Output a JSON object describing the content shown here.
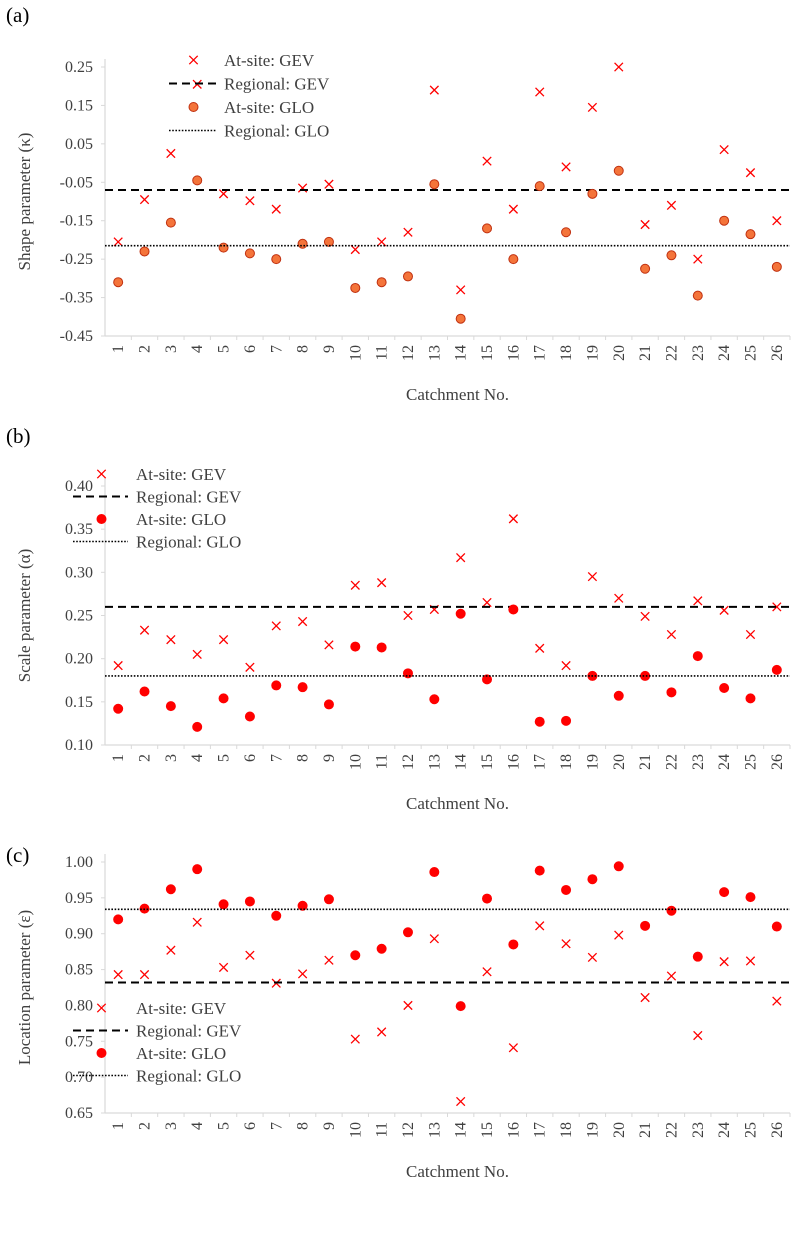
{
  "colors": {
    "marker": "#ff0000",
    "marker_fill_a": "#f4743a",
    "axis": "#d9d9d9",
    "text": "#404040",
    "ref_line": "#000000"
  },
  "chart_data": [
    {
      "type": "scatter",
      "panel_label": "(a)",
      "xlabel": "Catchment No.",
      "ylabel": "Shape parameter (κ)",
      "categories": [
        "1",
        "2",
        "3",
        "4",
        "5",
        "6",
        "7",
        "8",
        "9",
        "10",
        "11",
        "12",
        "13",
        "14",
        "15",
        "16",
        "17",
        "18",
        "19",
        "20",
        "21",
        "22",
        "23",
        "24",
        "25",
        "26"
      ],
      "ylim": [
        -0.45,
        0.25
      ],
      "yticks": [
        "-0.45",
        "-0.35",
        "-0.25",
        "-0.15",
        "-0.05",
        "0.05",
        "0.15",
        "0.25"
      ],
      "legend_position": "top-center",
      "series": [
        {
          "name": "At-site: GEV",
          "marker": "x",
          "values": [
            -0.205,
            -0.095,
            0.025,
            0.205,
            -0.08,
            -0.098,
            -0.12,
            -0.065,
            -0.055,
            -0.225,
            -0.205,
            -0.18,
            0.19,
            -0.33,
            0.005,
            -0.12,
            0.185,
            -0.01,
            0.145,
            0.25,
            -0.16,
            -0.11,
            -0.25,
            0.035,
            -0.025,
            -0.15
          ]
        },
        {
          "name": "Regional: GEV",
          "line": "dashed",
          "value": -0.07
        },
        {
          "name": "At-site: GLO",
          "marker": "circle",
          "values": [
            -0.31,
            -0.23,
            -0.155,
            -0.045,
            -0.22,
            -0.235,
            -0.25,
            -0.21,
            -0.205,
            -0.325,
            -0.31,
            -0.295,
            -0.055,
            -0.405,
            -0.17,
            -0.25,
            -0.06,
            -0.18,
            -0.08,
            -0.02,
            -0.275,
            -0.24,
            -0.345,
            -0.15,
            -0.185,
            -0.27
          ]
        },
        {
          "name": "Regional: GLO",
          "line": "dotted",
          "value": -0.215
        }
      ]
    },
    {
      "type": "scatter",
      "panel_label": "(b)",
      "xlabel": "Catchment No.",
      "ylabel": "Scale parameter (α)",
      "categories": [
        "1",
        "2",
        "3",
        "4",
        "5",
        "6",
        "7",
        "8",
        "9",
        "10",
        "11",
        "12",
        "13",
        "14",
        "15",
        "16",
        "17",
        "18",
        "19",
        "20",
        "21",
        "22",
        "23",
        "24",
        "25",
        "26"
      ],
      "ylim": [
        0.1,
        0.4
      ],
      "yticks": [
        "0.10",
        "0.15",
        "0.20",
        "0.25",
        "0.30",
        "0.35",
        "0.40"
      ],
      "legend_position": "top-left",
      "series": [
        {
          "name": "At-site: GEV",
          "marker": "x",
          "values": [
            0.192,
            0.233,
            0.222,
            0.205,
            0.222,
            0.19,
            0.238,
            0.243,
            0.216,
            0.285,
            0.288,
            0.25,
            0.257,
            0.317,
            0.265,
            0.362,
            0.212,
            0.192,
            0.295,
            0.27,
            0.249,
            0.228,
            0.267,
            0.256,
            0.228,
            0.26
          ]
        },
        {
          "name": "Regional: GEV",
          "line": "dashed",
          "value": 0.26
        },
        {
          "name": "At-site: GLO",
          "marker": "circle",
          "values": [
            0.142,
            0.162,
            0.145,
            0.121,
            0.154,
            0.133,
            0.169,
            0.167,
            0.147,
            0.214,
            0.213,
            0.183,
            0.153,
            0.252,
            0.176,
            0.257,
            0.127,
            0.128,
            0.18,
            0.157,
            0.18,
            0.161,
            0.203,
            0.166,
            0.154,
            0.187
          ]
        },
        {
          "name": "Regional: GLO",
          "line": "dotted",
          "value": 0.18
        }
      ]
    },
    {
      "type": "scatter",
      "panel_label": "(c)",
      "xlabel": "Catchment No.",
      "ylabel": "Location parameter (ε)",
      "categories": [
        "1",
        "2",
        "3",
        "4",
        "5",
        "6",
        "7",
        "8",
        "9",
        "10",
        "11",
        "12",
        "13",
        "14",
        "15",
        "16",
        "17",
        "18",
        "19",
        "20",
        "21",
        "22",
        "23",
        "24",
        "25",
        "26"
      ],
      "ylim": [
        0.65,
        1.0
      ],
      "yticks": [
        "0.65",
        "0.70",
        "0.75",
        "0.80",
        "0.85",
        "0.90",
        "0.95",
        "1.00"
      ],
      "legend_position": "bottom-left",
      "series": [
        {
          "name": "At-site: GEV",
          "marker": "x",
          "values": [
            0.843,
            0.843,
            0.877,
            0.916,
            0.853,
            0.87,
            0.831,
            0.844,
            0.863,
            0.753,
            0.763,
            0.8,
            0.893,
            0.666,
            0.847,
            0.741,
            0.911,
            0.886,
            0.867,
            0.898,
            0.811,
            0.841,
            0.758,
            0.861,
            0.862,
            0.806
          ]
        },
        {
          "name": "Regional: GEV",
          "line": "dashed",
          "value": 0.832
        },
        {
          "name": "At-site: GLO",
          "marker": "circle",
          "values": [
            0.92,
            0.935,
            0.962,
            0.99,
            0.941,
            0.945,
            0.925,
            0.939,
            0.948,
            0.87,
            0.879,
            0.902,
            0.986,
            0.799,
            0.949,
            0.885,
            0.988,
            0.961,
            0.976,
            0.994,
            0.911,
            0.932,
            0.868,
            0.958,
            0.951,
            0.91
          ]
        },
        {
          "name": "Regional: GLO",
          "line": "dotted",
          "value": 0.934
        }
      ]
    }
  ]
}
